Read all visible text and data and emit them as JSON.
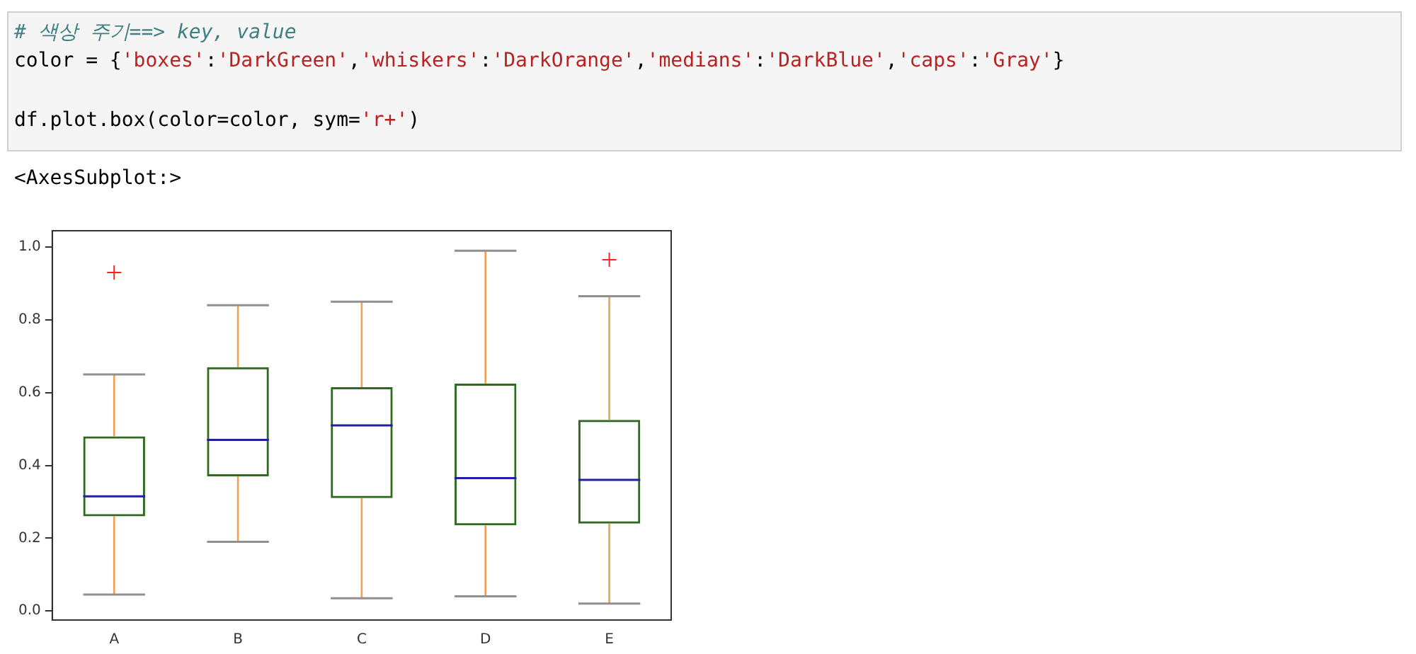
{
  "chart_data": {
    "type": "box",
    "annotations": [
      "# 색상 주기==> key, value",
      "color = {'boxes':'DarkGreen','whiskers':'DarkOrange','medians':'DarkBlue','caps':'Gray'}\n\ndf.plot.box(color=color, sym='r+')",
      "<AxesSubplot:>"
    ],
    "categories": [
      "A",
      "B",
      "C",
      "D",
      "E"
    ],
    "series": [
      {
        "color": "#2f6b1f",
        "boxes": [
          {
            "low": 0.045,
            "q1": 0.26,
            "median": 0.315,
            "q3": 0.48,
            "high": 0.65,
            "outliers": [
              0.93
            ]
          },
          {
            "low": 0.19,
            "q1": 0.37,
            "median": 0.47,
            "q3": 0.67,
            "high": 0.84
          },
          {
            "low": 0.035,
            "q1": 0.31,
            "median": 0.51,
            "q3": 0.615,
            "high": 0.85
          },
          {
            "low": 0.04,
            "q1": 0.235,
            "median": 0.365,
            "q3": 0.625,
            "high": 0.99
          },
          {
            "low": 0.02,
            "q1": 0.24,
            "median": 0.36,
            "q3": 0.525,
            "high": 0.865,
            "outliers": [
              0.965
            ]
          }
        ]
      }
    ],
    "ylim": [
      -0.025,
      1.045
    ],
    "yticks": [
      {
        "value": 0,
        "label": "0.0"
      },
      0.2,
      0.4,
      0.6,
      0.8,
      {
        "value": 1,
        "label": "1.0"
      }
    ],
    "grid": false,
    "legend": false,
    "marker": "cross"
  }
}
